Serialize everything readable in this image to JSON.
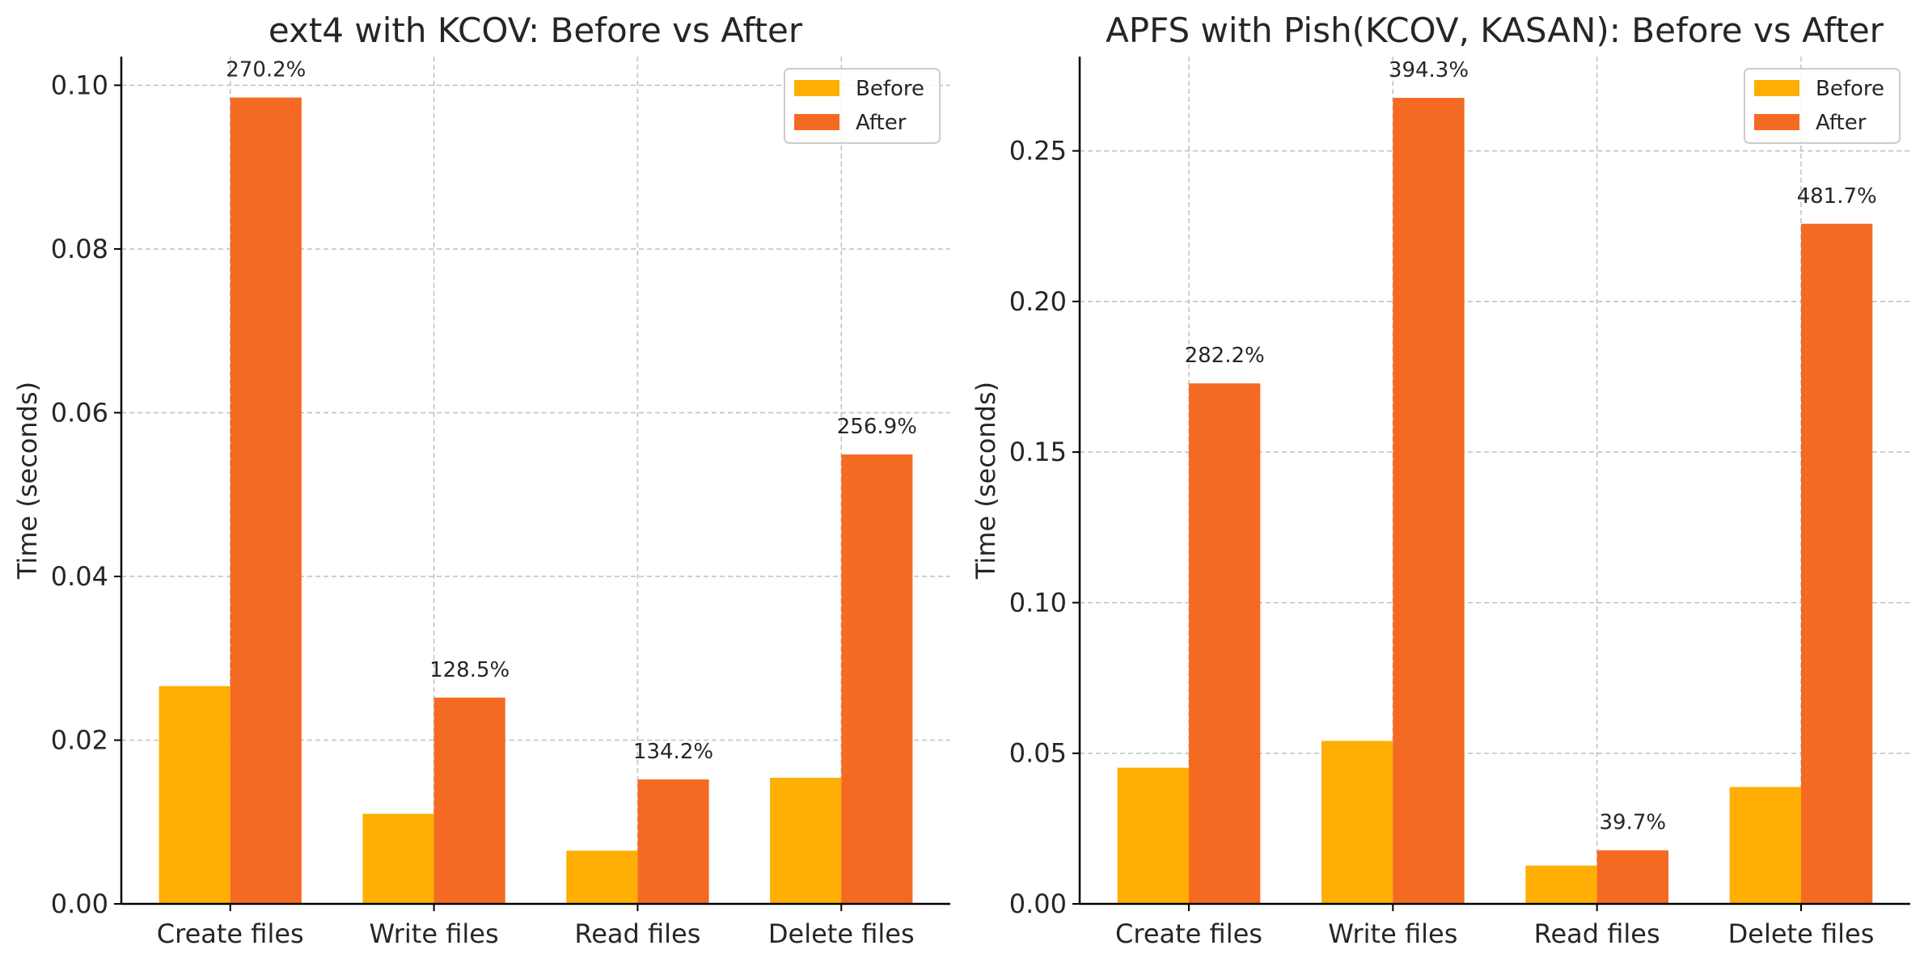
{
  "chart_data": [
    {
      "type": "bar",
      "title": "ext4 with KCOV: Before vs After",
      "xlabel": "",
      "ylabel": "Time (seconds)",
      "categories": [
        "Create files",
        "Write files",
        "Read files",
        "Delete files"
      ],
      "series": [
        {
          "name": "Before",
          "color": "#FFAE03",
          "values": [
            0.0266,
            0.011,
            0.0065,
            0.0154
          ]
        },
        {
          "name": "After",
          "color": "#F46A22",
          "values": [
            0.0985,
            0.0252,
            0.0152,
            0.0549
          ]
        }
      ],
      "data_labels": [
        "270.2%",
        "128.5%",
        "134.2%",
        "256.9%"
      ],
      "ylim": [
        0,
        0.1035
      ],
      "yticks": [
        "0.00",
        "0.02",
        "0.04",
        "0.06",
        "0.08",
        "0.10"
      ],
      "ytick_values": [
        0,
        0.02,
        0.04,
        0.06,
        0.08,
        0.1
      ],
      "grid": true,
      "legend_position": "top-right"
    },
    {
      "type": "bar",
      "title": "APFS with Pish(KCOV, KASAN): Before vs After",
      "xlabel": "",
      "ylabel": "Time (seconds)",
      "categories": [
        "Create files",
        "Write files",
        "Read files",
        "Delete files"
      ],
      "series": [
        {
          "name": "Before",
          "color": "#FFAE03",
          "values": [
            0.0452,
            0.0541,
            0.0127,
            0.0388
          ]
        },
        {
          "name": "After",
          "color": "#F46A22",
          "values": [
            0.1728,
            0.2676,
            0.0178,
            0.2258
          ]
        }
      ],
      "data_labels": [
        "282.2%",
        "394.3%",
        "39.7%",
        "481.7%"
      ],
      "ylim": [
        0,
        0.2813
      ],
      "yticks": [
        "0.00",
        "0.05",
        "0.10",
        "0.15",
        "0.20",
        "0.25"
      ],
      "ytick_values": [
        0,
        0.05,
        0.1,
        0.15,
        0.2,
        0.25
      ],
      "grid": true,
      "legend_position": "top-right"
    }
  ]
}
